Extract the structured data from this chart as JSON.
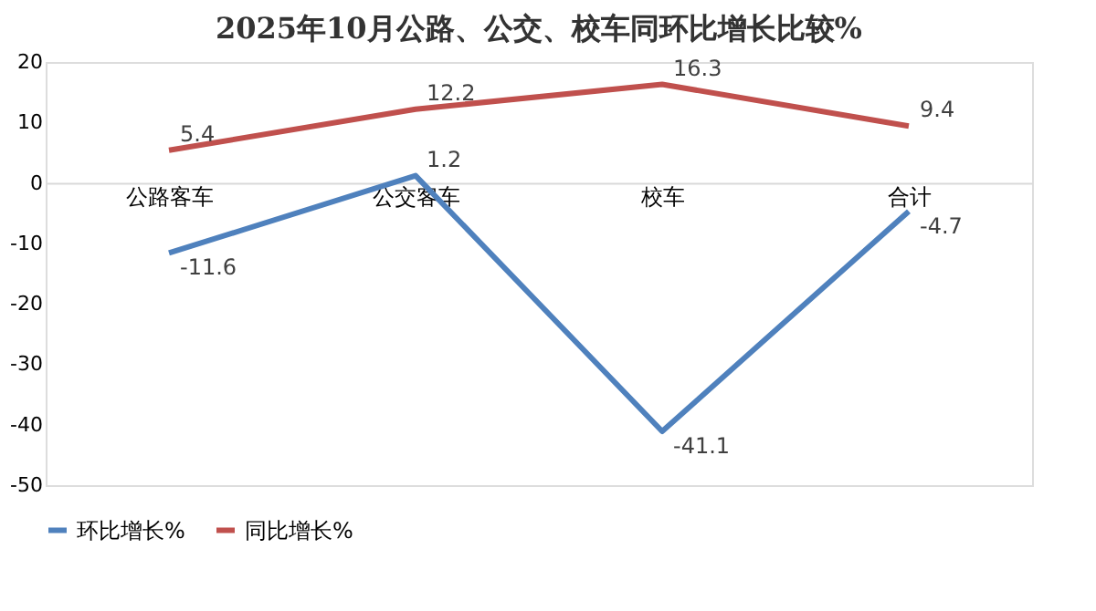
{
  "chart_data": {
    "type": "line",
    "title": "2025年10月公路、公交、校车同环比增长比较%",
    "categories": [
      "公路客车",
      "公交客车",
      "校车",
      "合计"
    ],
    "series": [
      {
        "name": "环比增长%",
        "color": "#4f81bd",
        "values": [
          -11.6,
          1.2,
          -41.1,
          -4.7
        ]
      },
      {
        "name": "同比增长%",
        "color": "#c0504d",
        "values": [
          5.4,
          12.2,
          16.3,
          9.4
        ]
      }
    ],
    "ylim": [
      -50,
      20
    ],
    "yticks": [
      -50,
      -40,
      -30,
      -20,
      -10,
      0,
      10,
      20
    ],
    "grid": false,
    "legend": "bottom",
    "data_labels": true,
    "marker": "none",
    "line_style": "solid"
  }
}
